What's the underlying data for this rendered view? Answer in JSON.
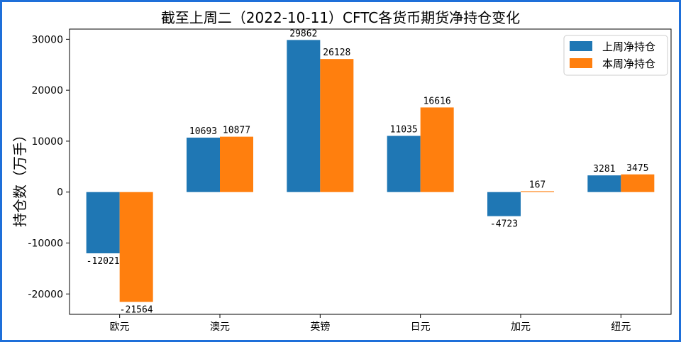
{
  "chart_data": {
    "type": "bar",
    "title": "截至上周二（2022-10-11）CFTC各货币期货净持仓变化",
    "xlabel": "",
    "ylabel": "持仓数（万手）",
    "categories": [
      "欧元",
      "澳元",
      "英镑",
      "日元",
      "加元",
      "纽元"
    ],
    "series": [
      {
        "name": "上周净持仓",
        "color": "#1f77b4",
        "values": [
          -12021,
          10693,
          29862,
          11035,
          -4723,
          3281
        ]
      },
      {
        "name": "本周净持仓",
        "color": "#ff7f0e",
        "values": [
          -21564,
          10877,
          26128,
          16616,
          167,
          3475
        ]
      }
    ],
    "ylim": [
      -24000,
      32000
    ],
    "yticks": [
      -20000,
      -10000,
      0,
      10000,
      20000,
      30000
    ],
    "grid": false,
    "legend_position": "top-right"
  }
}
